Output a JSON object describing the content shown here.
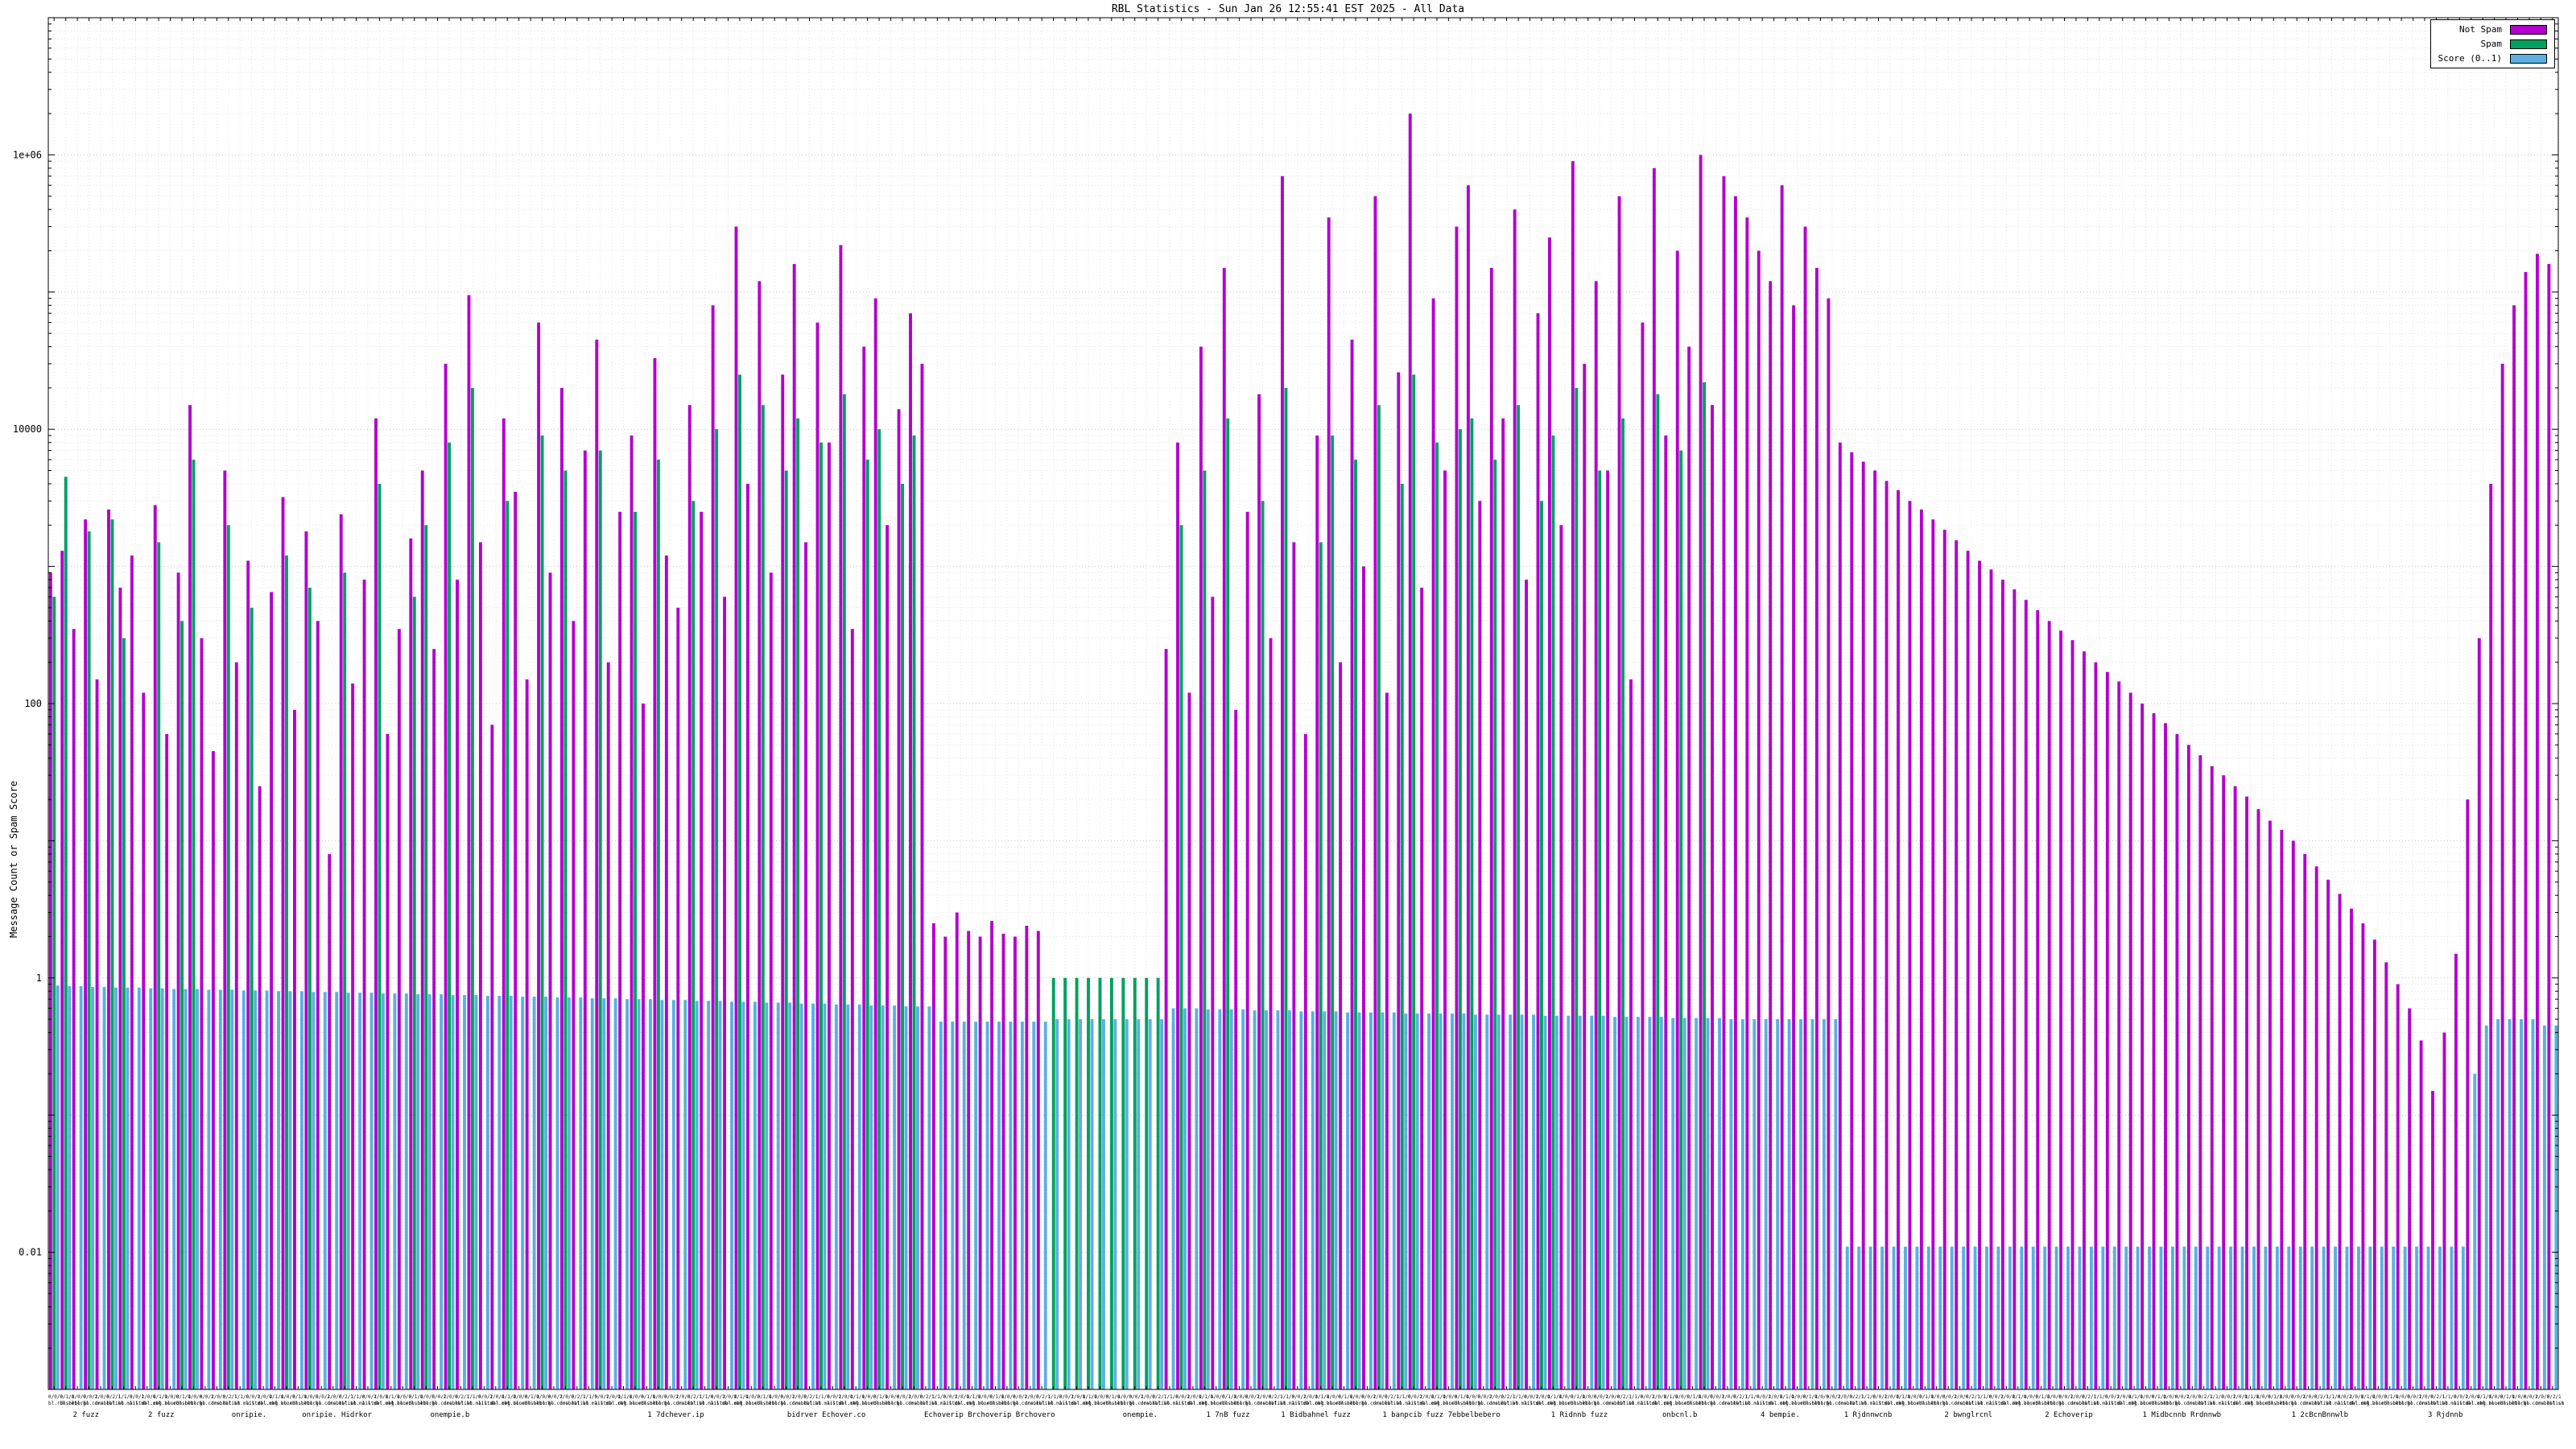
{
  "chart_data": {
    "type": "bar",
    "title": "RBL Statistics - Sun Jan 26 12:55:41 EST 2025 - All Data",
    "ylabel": "Message Count or Spam Score",
    "y_scale": "log",
    "ylim": [
      0.001,
      10000000
    ],
    "grid": "dotted",
    "legend_position": "top-right",
    "yticks": [
      {
        "label": "1e+06",
        "value": 1000000
      },
      {
        "label": "10000",
        "value": 10000
      },
      {
        "label": "100",
        "value": 100
      },
      {
        "label": "1",
        "value": 1
      },
      {
        "label": "0.01",
        "value": 0.01
      }
    ],
    "legend": [
      {
        "label": "Not Spam",
        "color": "#b200cc"
      },
      {
        "label": "Spam",
        "color": "#00a060"
      },
      {
        "label": "Score (0..1)",
        "color": "#5ab0e0"
      }
    ],
    "colors": {
      "not_spam": "#b200cc",
      "spam": "#00a060",
      "score": "#5ab0e0",
      "grid_major": "#c4c4c4",
      "grid_minor": "#e4e4e4",
      "axis": "#000000"
    },
    "n_bars": 216,
    "series": {
      "not_spam": [
        900,
        1300,
        350,
        2200,
        150,
        2600,
        700,
        1200,
        120,
        2800,
        60,
        900,
        15000,
        300,
        45,
        5000,
        200,
        1100,
        25,
        650,
        3200,
        90,
        1800,
        400,
        8,
        2400,
        140,
        800,
        12000,
        60,
        350,
        1600,
        5000,
        250,
        30000,
        800,
        95000,
        1500,
        70,
        12000,
        3500,
        150,
        60000,
        900,
        20000,
        400,
        7000,
        45000,
        200,
        2500,
        9000,
        100,
        33000,
        1200,
        500,
        15000,
        2500,
        80000,
        600,
        300000,
        4000,
        120000,
        900,
        25000,
        160000,
        1500,
        60000,
        8000,
        220000,
        350,
        40000,
        90000,
        2000,
        14000,
        70000,
        30000,
        2.5,
        2,
        3,
        2.2,
        2,
        2.6,
        2.1,
        2,
        2.4,
        2.2,
        null,
        null,
        null,
        null,
        null,
        null,
        null,
        null,
        null,
        null,
        250,
        8000,
        120,
        40000,
        600,
        150000,
        90,
        2500,
        18000,
        300,
        700000,
        1500,
        60,
        9000,
        350000,
        200,
        45000,
        1000,
        500000,
        120,
        26000,
        2000000,
        700,
        90000,
        5000,
        300000,
        600000,
        3000,
        150000,
        12000,
        400000,
        800,
        70000,
        250000,
        2000,
        900000,
        30000,
        120000,
        5000,
        500000,
        150,
        60000,
        800000,
        9000,
        200000,
        40000,
        1000000,
        15000,
        700000,
        500000,
        350000,
        200000,
        120000,
        600000,
        80000,
        300000,
        150000,
        90000,
        8000,
        6800,
        5800,
        5000,
        4200,
        3600,
        3000,
        2600,
        2200,
        1850,
        1550,
        1300,
        1100,
        950,
        800,
        680,
        570,
        480,
        400,
        340,
        290,
        240,
        200,
        170,
        145,
        120,
        100,
        85,
        72,
        60,
        50,
        42,
        35,
        30,
        25,
        21,
        17,
        14,
        12,
        10,
        8,
        6.5,
        5.2,
        4.1,
        3.2,
        2.5,
        1.9,
        1.3,
        0.9,
        0.6,
        0.35,
        0.15,
        0.4,
        1.5,
        20,
        300,
        4000,
        30000,
        80000,
        140000,
        190000,
        160000
      ],
      "spam": [
        600,
        4500,
        null,
        1800,
        null,
        2200,
        300,
        null,
        null,
        1500,
        null,
        400,
        6000,
        null,
        null,
        2000,
        null,
        500,
        null,
        null,
        1200,
        null,
        700,
        null,
        null,
        900,
        null,
        null,
        4000,
        null,
        null,
        600,
        2000,
        null,
        8000,
        null,
        20000,
        null,
        null,
        3000,
        null,
        null,
        9000,
        null,
        5000,
        null,
        null,
        7000,
        null,
        null,
        2500,
        null,
        6000,
        null,
        null,
        3000,
        null,
        10000,
        null,
        25000,
        null,
        15000,
        null,
        5000,
        12000,
        null,
        8000,
        null,
        18000,
        null,
        6000,
        10000,
        null,
        4000,
        9000,
        null,
        null,
        null,
        null,
        null,
        null,
        null,
        null,
        null,
        null,
        null,
        1,
        1,
        1,
        1,
        1,
        1,
        1,
        1,
        1,
        1,
        null,
        2000,
        null,
        5000,
        null,
        12000,
        null,
        null,
        3000,
        null,
        20000,
        null,
        null,
        1500,
        9000,
        null,
        6000,
        null,
        15000,
        null,
        4000,
        25000,
        null,
        8000,
        null,
        10000,
        12000,
        null,
        6000,
        null,
        15000,
        null,
        3000,
        9000,
        null,
        20000,
        null,
        5000,
        null,
        12000,
        null,
        null,
        18000,
        null,
        7000,
        null,
        22000,
        null,
        null,
        null,
        null,
        null,
        null,
        null,
        null,
        null,
        null,
        null,
        null,
        null,
        null,
        null,
        null,
        null,
        null,
        null,
        null,
        null,
        null,
        null,
        null,
        null,
        null,
        null,
        null,
        null,
        null,
        null,
        null,
        null,
        null,
        null,
        null,
        null,
        null,
        null,
        null,
        null,
        null,
        null,
        null,
        null,
        null,
        null,
        null,
        null,
        null,
        null,
        null,
        null,
        null,
        null,
        null,
        null,
        null,
        null,
        null,
        null,
        null,
        null,
        null,
        null,
        null,
        null,
        null,
        null,
        null,
        null,
        null,
        null
      ],
      "score": [
        0.88,
        0.87,
        0.87,
        0.86,
        0.86,
        0.85,
        0.85,
        0.85,
        0.84,
        0.84,
        0.83,
        0.83,
        0.83,
        0.82,
        0.82,
        0.82,
        0.81,
        0.81,
        0.81,
        0.8,
        0.8,
        0.8,
        0.79,
        0.79,
        0.79,
        0.78,
        0.78,
        0.78,
        0.77,
        0.77,
        0.77,
        0.76,
        0.76,
        0.76,
        0.75,
        0.75,
        0.75,
        0.74,
        0.74,
        0.74,
        0.73,
        0.73,
        0.73,
        0.72,
        0.72,
        0.72,
        0.71,
        0.71,
        0.71,
        0.7,
        0.7,
        0.7,
        0.69,
        0.69,
        0.69,
        0.68,
        0.68,
        0.68,
        0.67,
        0.67,
        0.67,
        0.66,
        0.66,
        0.66,
        0.65,
        0.65,
        0.65,
        0.64,
        0.64,
        0.64,
        0.63,
        0.63,
        0.63,
        0.62,
        0.62,
        0.62,
        0.48,
        0.48,
        0.48,
        0.48,
        0.48,
        0.48,
        0.48,
        0.48,
        0.48,
        0.48,
        0.5,
        0.5,
        0.5,
        0.5,
        0.5,
        0.5,
        0.5,
        0.5,
        0.5,
        0.5,
        0.6,
        0.6,
        0.6,
        0.59,
        0.59,
        0.59,
        0.59,
        0.58,
        0.58,
        0.58,
        0.58,
        0.57,
        0.57,
        0.57,
        0.57,
        0.56,
        0.56,
        0.56,
        0.56,
        0.56,
        0.55,
        0.55,
        0.55,
        0.55,
        0.55,
        0.55,
        0.54,
        0.54,
        0.54,
        0.54,
        0.54,
        0.54,
        0.53,
        0.53,
        0.53,
        0.53,
        0.53,
        0.53,
        0.52,
        0.52,
        0.52,
        0.52,
        0.52,
        0.51,
        0.51,
        0.51,
        0.51,
        0.51,
        0.5,
        0.5,
        0.5,
        0.5,
        0.5,
        0.5,
        0.5,
        0.5,
        0.5,
        0.5,
        0.011,
        0.011,
        0.011,
        0.011,
        0.011,
        0.011,
        0.011,
        0.011,
        0.011,
        0.011,
        0.011,
        0.011,
        0.011,
        0.011,
        0.011,
        0.011,
        0.011,
        0.011,
        0.011,
        0.011,
        0.011,
        0.011,
        0.011,
        0.011,
        0.011,
        0.011,
        0.011,
        0.011,
        0.011,
        0.011,
        0.011,
        0.011,
        0.011,
        0.011,
        0.011,
        0.011,
        0.011,
        0.011,
        0.011,
        0.011,
        0.011,
        0.011,
        0.011,
        0.011,
        0.011,
        0.011,
        0.011,
        0.011,
        0.011,
        0.011,
        0.011,
        0.011,
        0.011,
        0.011,
        0.2,
        0.45,
        0.5,
        0.5,
        0.5,
        0.5,
        0.45,
        0.45
      ]
    },
    "x_axis": {
      "labels_legible": false,
      "strip_row1": [
        "0/0/0",
        "0/1/0",
        "1/0/0",
        "0/0/1",
        "2/0/0",
        "0/2/1",
        "1/1/0",
        "0/0/2",
        "1/0/1",
        "0/1/1"
      ],
      "strip_row2": [
        "bl.rbl.net",
        "dnsbl.org",
        "rbl.io",
        "bl.core.net",
        "dnsbl.list",
        "rbl.co",
        "bl.mail.me",
        "list.bl.org",
        "dbl.net",
        "rbl.zone"
      ],
      "group_labels": [
        {
          "pos": 0.015,
          "text": "2 fuzz"
        },
        {
          "pos": 0.045,
          "text": "2 fuzz"
        },
        {
          "pos": 0.08,
          "text": "onripie."
        },
        {
          "pos": 0.115,
          "text": "onripie. Hidrkor"
        },
        {
          "pos": 0.16,
          "text": "onempie.b"
        },
        {
          "pos": 0.25,
          "text": "1 7dchever.ip"
        },
        {
          "pos": 0.31,
          "text": "bidrver Echover.co"
        },
        {
          "pos": 0.375,
          "text": "Echoverip Brchoverip Brchovero"
        },
        {
          "pos": 0.435,
          "text": "onempie."
        },
        {
          "pos": 0.47,
          "text": "1 7nB fuzz"
        },
        {
          "pos": 0.505,
          "text": "1 Bidbahnel fuzz"
        },
        {
          "pos": 0.555,
          "text": "1 banpcib fuzz 7ebbelbebero"
        },
        {
          "pos": 0.61,
          "text": "1 Ridnnb fuzz"
        },
        {
          "pos": 0.65,
          "text": "onbcnl.b"
        },
        {
          "pos": 0.69,
          "text": "4 bempie."
        },
        {
          "pos": 0.725,
          "text": "1 Rjdnnwcnb"
        },
        {
          "pos": 0.765,
          "text": "2 bwnglrcnl"
        },
        {
          "pos": 0.805,
          "text": "2 Echoverip"
        },
        {
          "pos": 0.85,
          "text": "1 Midbcnnb Rrdnnwb"
        },
        {
          "pos": 0.905,
          "text": "1 2cBcnBnnwlb"
        },
        {
          "pos": 0.955,
          "text": "3 Rjdnnb"
        }
      ]
    }
  }
}
